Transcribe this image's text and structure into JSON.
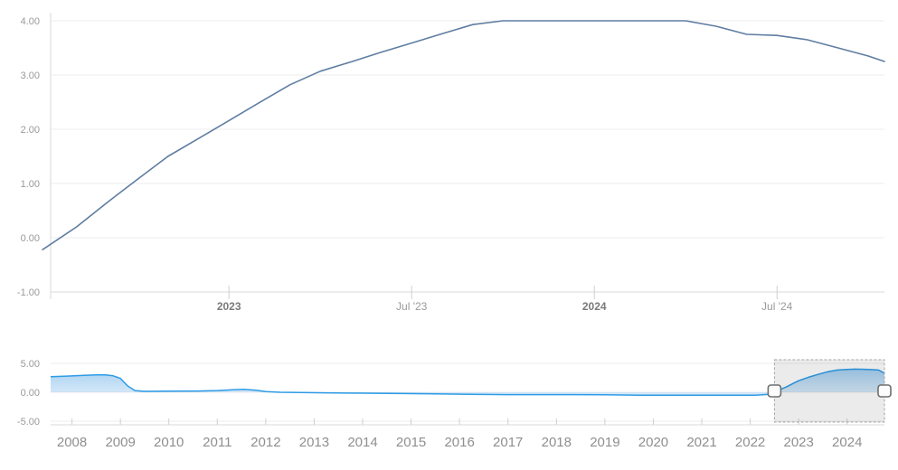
{
  "chart": {
    "background": "#ffffff",
    "description": "interest-rate-history-chart-with-range-navigator"
  },
  "chart_data": [
    {
      "type": "line",
      "panel": "main",
      "title": "",
      "x_unit": "decimal_year",
      "xlim": [
        2022.512,
        2024.794
      ],
      "ylim": [
        -1,
        4.15
      ],
      "grid": true,
      "legend": false,
      "yticks": [
        {
          "v": 4,
          "label": "4.00"
        },
        {
          "v": 3,
          "label": "3.00"
        },
        {
          "v": 2,
          "label": "2.00"
        },
        {
          "v": 1,
          "label": "1.00"
        },
        {
          "v": 0,
          "label": "0.00"
        },
        {
          "v": -1,
          "label": "-1.00"
        }
      ],
      "xticks": [
        {
          "v": 2023,
          "label": "2023",
          "bold": true
        },
        {
          "v": 2023.5,
          "label": "Jul '23",
          "bold": false
        },
        {
          "v": 2024,
          "label": "2024",
          "bold": true
        },
        {
          "v": 2024.5,
          "label": "Jul '24",
          "bold": false
        }
      ],
      "series": [
        {
          "name": "interest-rate",
          "color": "#5f7da1",
          "points": [
            [
              2022.49,
              -0.22
            ],
            [
              2022.583,
              0.2
            ],
            [
              2022.667,
              0.65
            ],
            [
              2022.75,
              1.08
            ],
            [
              2022.833,
              1.5
            ],
            [
              2022.917,
              1.83
            ],
            [
              2023.0,
              2.16
            ],
            [
              2023.083,
              2.49
            ],
            [
              2023.167,
              2.82
            ],
            [
              2023.25,
              3.07
            ],
            [
              2023.333,
              3.24
            ],
            [
              2023.417,
              3.42
            ],
            [
              2023.5,
              3.59
            ],
            [
              2023.583,
              3.76
            ],
            [
              2023.667,
              3.93
            ],
            [
              2023.75,
              4.0
            ],
            [
              2023.833,
              4.0
            ],
            [
              2023.917,
              4.0
            ],
            [
              2024.0,
              4.0
            ],
            [
              2024.083,
              4.0
            ],
            [
              2024.167,
              4.0
            ],
            [
              2024.25,
              4.0
            ],
            [
              2024.333,
              3.9
            ],
            [
              2024.417,
              3.75
            ],
            [
              2024.5,
              3.73
            ],
            [
              2024.583,
              3.65
            ],
            [
              2024.667,
              3.5
            ],
            [
              2024.75,
              3.35
            ],
            [
              2024.794,
              3.25
            ]
          ]
        }
      ]
    },
    {
      "type": "area",
      "panel": "navigator",
      "title": "",
      "x_unit": "decimal_year",
      "xlim": [
        2007.56,
        2024.77
      ],
      "ylim": [
        -5.625,
        5.625
      ],
      "grid": true,
      "legend": false,
      "yticks": [
        {
          "v": 5,
          "label": "5.00"
        },
        {
          "v": 0,
          "label": "0.00"
        },
        {
          "v": -5,
          "label": "-5.00"
        }
      ],
      "xticks": [
        {
          "v": 2008,
          "label": "2008"
        },
        {
          "v": 2009,
          "label": "2009"
        },
        {
          "v": 2010,
          "label": "2010"
        },
        {
          "v": 2011,
          "label": "2011"
        },
        {
          "v": 2012,
          "label": "2012"
        },
        {
          "v": 2013,
          "label": "2013"
        },
        {
          "v": 2014,
          "label": "2014"
        },
        {
          "v": 2015,
          "label": "2015"
        },
        {
          "v": 2016,
          "label": "2016"
        },
        {
          "v": 2017,
          "label": "2017"
        },
        {
          "v": 2018,
          "label": "2018"
        },
        {
          "v": 2019,
          "label": "2019"
        },
        {
          "v": 2020,
          "label": "2020"
        },
        {
          "v": 2021,
          "label": "2021"
        },
        {
          "v": 2022,
          "label": "2022"
        },
        {
          "v": 2023,
          "label": "2023"
        },
        {
          "v": 2024,
          "label": "2024"
        }
      ],
      "series": [
        {
          "name": "interest-rate-full-history",
          "color": "#2e9be6",
          "fill_top": "#55a5e3",
          "fill_bottom": "#eaf4fc",
          "points": [
            [
              2007.56,
              2.7
            ],
            [
              2007.9,
              2.8
            ],
            [
              2008.2,
              2.9
            ],
            [
              2008.5,
              3.0
            ],
            [
              2008.7,
              3.0
            ],
            [
              2008.85,
              2.85
            ],
            [
              2009.0,
              2.4
            ],
            [
              2009.15,
              1.1
            ],
            [
              2009.3,
              0.3
            ],
            [
              2009.5,
              0.15
            ],
            [
              2010.0,
              0.18
            ],
            [
              2010.6,
              0.22
            ],
            [
              2011.0,
              0.3
            ],
            [
              2011.3,
              0.42
            ],
            [
              2011.55,
              0.5
            ],
            [
              2011.8,
              0.35
            ],
            [
              2012.0,
              0.12
            ],
            [
              2012.3,
              0.0
            ],
            [
              2012.7,
              -0.05
            ],
            [
              2013.2,
              -0.1
            ],
            [
              2014.0,
              -0.15
            ],
            [
              2014.8,
              -0.22
            ],
            [
              2015.5,
              -0.28
            ],
            [
              2016.2,
              -0.35
            ],
            [
              2017.0,
              -0.4
            ],
            [
              2018.0,
              -0.4
            ],
            [
              2019.0,
              -0.42
            ],
            [
              2019.7,
              -0.5
            ],
            [
              2021.0,
              -0.5
            ],
            [
              2022.1,
              -0.5
            ],
            [
              2022.4,
              -0.35
            ],
            [
              2022.5,
              -0.05
            ],
            [
              2022.6,
              0.4
            ],
            [
              2022.75,
              0.95
            ],
            [
              2022.9,
              1.6
            ],
            [
              2023.0,
              2.0
            ],
            [
              2023.2,
              2.6
            ],
            [
              2023.4,
              3.1
            ],
            [
              2023.6,
              3.55
            ],
            [
              2023.8,
              3.85
            ],
            [
              2024.0,
              3.95
            ],
            [
              2024.15,
              4.0
            ],
            [
              2024.3,
              3.98
            ],
            [
              2024.5,
              3.92
            ],
            [
              2024.65,
              3.85
            ],
            [
              2024.77,
              3.3
            ]
          ]
        }
      ],
      "selection": {
        "start": 2022.5,
        "end": 2024.77,
        "fill": "rgba(0,0,0,0.08)",
        "border": "#a6a6a6",
        "handle_fill": "#fcfcfc",
        "handle_border": "#6e6e6e"
      }
    }
  ]
}
